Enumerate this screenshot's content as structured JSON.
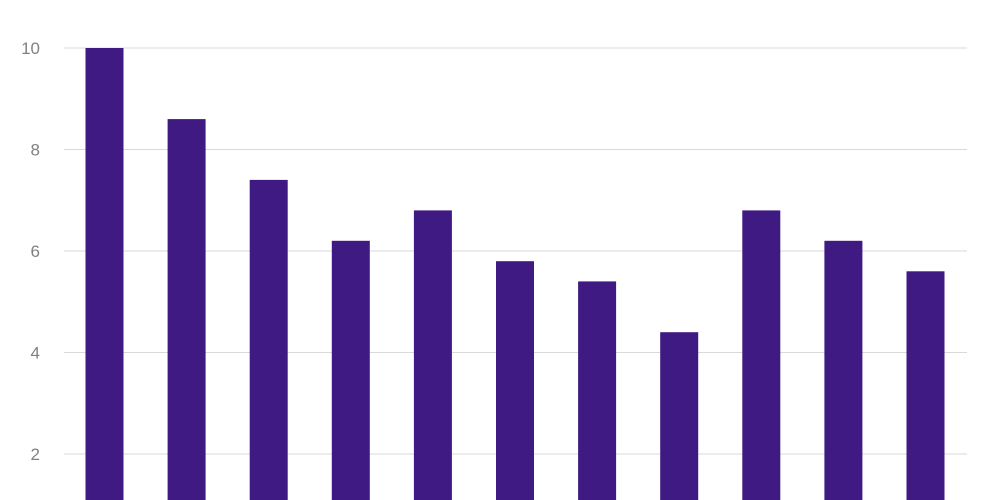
{
  "chart_data": {
    "type": "bar",
    "title": "",
    "xlabel": "",
    "ylabel": "",
    "ylim": [
      0,
      10
    ],
    "yticks": [
      2,
      4,
      6,
      8,
      10
    ],
    "grid": true,
    "legend": "none",
    "bar_color": "#3f1a82",
    "grid_color": "#d9d9d9",
    "tick_label_color": "#808080",
    "values": [
      10.0,
      8.6,
      7.4,
      6.2,
      6.8,
      5.8,
      5.4,
      4.4,
      6.8,
      6.2,
      5.6
    ]
  }
}
